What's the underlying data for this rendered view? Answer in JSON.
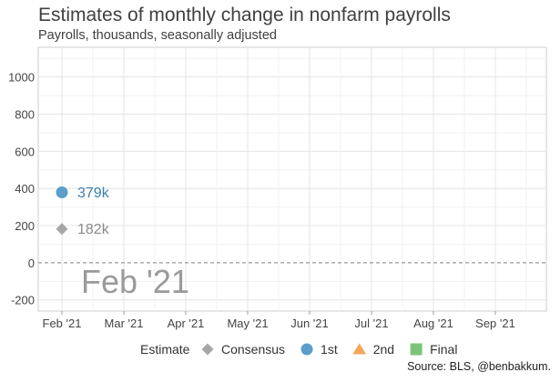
{
  "chart_data": {
    "type": "scatter",
    "title": "Estimates of monthly change in nonfarm payrolls",
    "subtitle": "Payrolls, thousands, seasonally adjusted",
    "categories": [
      "Feb '21",
      "Mar '21",
      "Apr '21",
      "May '21",
      "Jun '21",
      "Jul '21",
      "Aug '21",
      "Sep '21"
    ],
    "y_ticks": [
      1000,
      800,
      600,
      400,
      200,
      0,
      -200
    ],
    "ylim": [
      -260,
      1160
    ],
    "grid": true,
    "series": [
      {
        "name": "Consensus",
        "marker": "diamond",
        "color": "#a6a6a6",
        "values": [
          182,
          null,
          null,
          null,
          null,
          null,
          null,
          null
        ]
      },
      {
        "name": "1st",
        "marker": "circle",
        "color": "#5b9ec9",
        "values": [
          379,
          null,
          null,
          null,
          null,
          null,
          null,
          null
        ]
      },
      {
        "name": "2nd",
        "marker": "triangle",
        "color": "#f5a65b",
        "values": [
          null,
          null,
          null,
          null,
          null,
          null,
          null,
          null
        ]
      },
      {
        "name": "Final",
        "marker": "square",
        "color": "#7cc47a",
        "values": [
          null,
          null,
          null,
          null,
          null,
          null,
          null,
          null
        ]
      }
    ],
    "point_labels": [
      {
        "series": "1st",
        "category": "Feb '21",
        "value": 379,
        "text": "379k",
        "color": "#3a7fb0"
      },
      {
        "series": "Consensus",
        "category": "Feb '21",
        "value": 182,
        "text": "182k",
        "color": "#8c8c8c"
      }
    ],
    "annotation": {
      "text": "Feb '21",
      "color": "#9a9a9a"
    },
    "reference_line": {
      "value": 0,
      "style": "dashed",
      "color": "#999999"
    },
    "legend": {
      "title": "Estimate",
      "placement": "bottom"
    }
  },
  "source": "Source: BLS, @benbakkum."
}
